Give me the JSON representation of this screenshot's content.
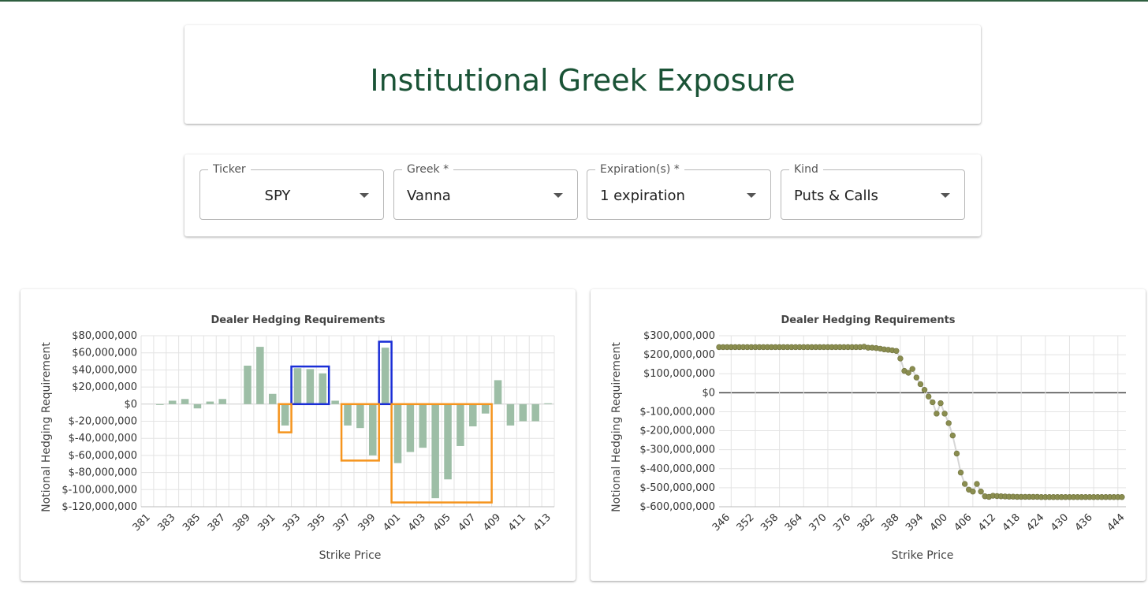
{
  "header": {
    "title": "Institutional Greek Exposure"
  },
  "filters": [
    {
      "label": "Ticker",
      "value": "SPY"
    },
    {
      "label": "Greek *",
      "value": "Vanna"
    },
    {
      "label": "Expiration(s) *",
      "value": "1 expiration"
    },
    {
      "label": "Kind",
      "value": "Puts & Calls"
    }
  ],
  "colors": {
    "title": "#1a5336",
    "bar": "#9dbea6",
    "point": "#8a8d4f",
    "highlight_blue": "#1a2ed6",
    "highlight_orange": "#f5941d"
  },
  "chart_data": [
    {
      "type": "bar",
      "title": "Dealer Hedging Requirements",
      "xlabel": "Strike Price",
      "ylabel": "Notional Hedging Requirement",
      "x_tick_labels": [
        "381",
        "383",
        "385",
        "387",
        "389",
        "391",
        "393",
        "395",
        "397",
        "399",
        "401",
        "403",
        "405",
        "407",
        "409",
        "411",
        "413"
      ],
      "y_tick_labels": [
        "$80,000,000",
        "$60,000,000",
        "$40,000,000",
        "$20,000,000",
        "$0",
        "$-20,000,000",
        "$-40,000,000",
        "$-60,000,000",
        "$-80,000,000",
        "$-100,000,000",
        "$-120,000,000"
      ],
      "ylim": [
        -120000000,
        80000000
      ],
      "categories": [
        381,
        382,
        383,
        384,
        385,
        386,
        387,
        388,
        389,
        390,
        391,
        392,
        393,
        394,
        395,
        396,
        397,
        398,
        399,
        400,
        401,
        402,
        403,
        404,
        405,
        406,
        407,
        408,
        409,
        410,
        411,
        412,
        413
      ],
      "values": [
        0,
        -1000000,
        4000000,
        6000000,
        -5000000,
        3000000,
        6000000,
        0,
        45000000,
        67000000,
        12000000,
        -25000000,
        42000000,
        41000000,
        36000000,
        4000000,
        -25000000,
        -28000000,
        -60000000,
        66000000,
        -69000000,
        -56000000,
        -51000000,
        -110000000,
        -88000000,
        -49000000,
        -26000000,
        -11000000,
        28000000,
        -25000000,
        -20000000,
        -20000000,
        1000000
      ],
      "annotations": [
        {
          "color": "blue",
          "x": [
            392.5,
            395.5
          ],
          "y": [
            0,
            44000000
          ]
        },
        {
          "color": "blue",
          "x": [
            399.5,
            400.5
          ],
          "y": [
            0,
            73000000
          ]
        },
        {
          "color": "orange",
          "x": [
            391.5,
            392.5
          ],
          "y": [
            -33000000,
            0
          ]
        },
        {
          "color": "orange",
          "x": [
            396.5,
            399.5
          ],
          "y": [
            -66000000,
            0
          ]
        },
        {
          "color": "orange",
          "x": [
            400.5,
            408.5
          ],
          "y": [
            -115000000,
            0
          ]
        }
      ]
    },
    {
      "type": "scatter",
      "title": "Dealer Hedging Requirements",
      "xlabel": "Strike Price",
      "ylabel": "Notional Hedging Requirement",
      "x_tick_labels": [
        "346",
        "352",
        "358",
        "364",
        "370",
        "376",
        "382",
        "388",
        "394",
        "400",
        "406",
        "412",
        "418",
        "424",
        "430",
        "436",
        "444"
      ],
      "y_tick_labels": [
        "$300,000,000",
        "$200,000,000",
        "$100,000,000",
        "$0",
        "$-100,000,000",
        "$-200,000,000",
        "$-300,000,000",
        "$-400,000,000",
        "$-500,000,000",
        "$-600,000,000"
      ],
      "ylim": [
        -600000000,
        300000000
      ],
      "xlim": [
        344,
        445
      ],
      "points": [
        [
          344,
          240000000
        ],
        [
          345,
          240000000
        ],
        [
          346,
          240000000
        ],
        [
          347,
          240000000
        ],
        [
          348,
          240000000
        ],
        [
          349,
          240000000
        ],
        [
          350,
          240000000
        ],
        [
          351,
          240000000
        ],
        [
          352,
          240000000
        ],
        [
          353,
          240000000
        ],
        [
          354,
          240000000
        ],
        [
          355,
          240000000
        ],
        [
          356,
          240000000
        ],
        [
          357,
          240000000
        ],
        [
          358,
          240000000
        ],
        [
          359,
          240000000
        ],
        [
          360,
          240000000
        ],
        [
          361,
          240000000
        ],
        [
          362,
          240000000
        ],
        [
          363,
          240000000
        ],
        [
          364,
          240000000
        ],
        [
          365,
          240000000
        ],
        [
          366,
          240000000
        ],
        [
          367,
          240000000
        ],
        [
          368,
          240000000
        ],
        [
          369,
          240000000
        ],
        [
          370,
          240000000
        ],
        [
          371,
          240000000
        ],
        [
          372,
          240000000
        ],
        [
          373,
          240000000
        ],
        [
          374,
          240000000
        ],
        [
          375,
          240000000
        ],
        [
          376,
          240000000
        ],
        [
          377,
          240000000
        ],
        [
          378,
          240000000
        ],
        [
          379,
          240000000
        ],
        [
          380,
          242000000
        ],
        [
          381,
          237000000
        ],
        [
          382,
          237000000
        ],
        [
          383,
          235000000
        ],
        [
          384,
          232000000
        ],
        [
          385,
          228000000
        ],
        [
          386,
          226000000
        ],
        [
          387,
          223000000
        ],
        [
          388,
          220000000
        ],
        [
          389,
          180000000
        ],
        [
          390,
          115000000
        ],
        [
          391,
          105000000
        ],
        [
          392,
          125000000
        ],
        [
          393,
          80000000
        ],
        [
          394,
          45000000
        ],
        [
          395,
          15000000
        ],
        [
          396,
          -20000000
        ],
        [
          397,
          -50000000
        ],
        [
          398,
          -110000000
        ],
        [
          399,
          -55000000
        ],
        [
          400,
          -110000000
        ],
        [
          401,
          -160000000
        ],
        [
          402,
          -225000000
        ],
        [
          403,
          -320000000
        ],
        [
          404,
          -420000000
        ],
        [
          405,
          -480000000
        ],
        [
          406,
          -510000000
        ],
        [
          407,
          -520000000
        ],
        [
          408,
          -480000000
        ],
        [
          409,
          -520000000
        ],
        [
          410,
          -545000000
        ],
        [
          411,
          -548000000
        ],
        [
          412,
          -542000000
        ],
        [
          413,
          -544000000
        ],
        [
          414,
          -545000000
        ],
        [
          415,
          -546000000
        ],
        [
          416,
          -547000000
        ],
        [
          417,
          -547000000
        ],
        [
          418,
          -548000000
        ],
        [
          419,
          -548000000
        ],
        [
          420,
          -548000000
        ],
        [
          421,
          -548000000
        ],
        [
          422,
          -548000000
        ],
        [
          423,
          -548000000
        ],
        [
          424,
          -549000000
        ],
        [
          425,
          -549000000
        ],
        [
          426,
          -549000000
        ],
        [
          427,
          -549000000
        ],
        [
          428,
          -549000000
        ],
        [
          429,
          -549000000
        ],
        [
          430,
          -549000000
        ],
        [
          431,
          -549000000
        ],
        [
          432,
          -549000000
        ],
        [
          433,
          -549000000
        ],
        [
          434,
          -549000000
        ],
        [
          435,
          -549000000
        ],
        [
          436,
          -549000000
        ],
        [
          437,
          -549000000
        ],
        [
          438,
          -549000000
        ],
        [
          439,
          -549000000
        ],
        [
          440,
          -549000000
        ],
        [
          441,
          -549000000
        ],
        [
          442,
          -549000000
        ],
        [
          443,
          -549000000
        ],
        [
          444,
          -549000000
        ]
      ]
    }
  ]
}
